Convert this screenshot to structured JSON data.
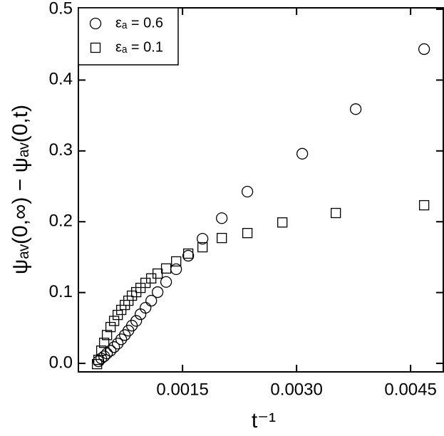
{
  "chart_data": {
    "type": "scatter",
    "xlabel": "t⁻¹",
    "ylabel": "ψₐᵥ(0,∞) − ψₐᵥ(0,t)",
    "xlim": [
      0.00013,
      0.00493
    ],
    "ylim": [
      -0.012,
      0.502
    ],
    "xticks": [
      0.0015,
      {
        "value": 0.003,
        "label": "0.0030"
      },
      0.0045
    ],
    "yticks": [
      {
        "value": 0,
        "label": "0.0"
      },
      0.1,
      0.2,
      0.3,
      0.4,
      0.5
    ],
    "legend": "upper-left",
    "series": [
      {
        "name": "εₐ = 0.6",
        "color": "#000000",
        "marker": "circle",
        "x": [
          0.004678,
          0.003778,
          0.003075,
          0.002353,
          0.002016,
          0.001763,
          0.001575,
          0.001416,
          0.001284,
          0.001172,
          0.001088,
          0.001013,
          0.000947,
          0.000891,
          0.000834,
          0.000788,
          0.000741,
          0.000694,
          0.000647,
          0.0006,
          0.000553,
          0.000506,
          0.000469,
          0.000431,
          0.000394
        ],
        "values": [
          0.4437,
          0.359,
          0.296,
          0.2425,
          0.205,
          0.176,
          0.152,
          0.133,
          0.115,
          0.1006,
          0.0885,
          0.0785,
          0.0694,
          0.06,
          0.0533,
          0.0463,
          0.04,
          0.034,
          0.028,
          0.023,
          0.018,
          0.014,
          0.01,
          0.007,
          0.003
        ]
      },
      {
        "name": "εₐ = 0.1",
        "color": "#000000",
        "marker": "square",
        "x": [
          0.004678,
          0.003516,
          0.002813,
          0.002353,
          0.002016,
          0.001763,
          0.001575,
          0.001416,
          0.001284,
          0.001172,
          0.001088,
          0.001013,
          0.000947,
          0.000891,
          0.000834,
          0.000788,
          0.000741,
          0.000694,
          0.000647,
          0.0006,
          0.000553,
          0.000506,
          0.000469,
          0.000431,
          0.000394,
          0.000375
        ],
        "values": [
          0.2233,
          0.2123,
          0.199,
          0.184,
          0.177,
          0.164,
          0.155,
          0.144,
          0.134,
          0.1268,
          0.12,
          0.1137,
          0.1066,
          0.1006,
          0.0956,
          0.0885,
          0.0825,
          0.0755,
          0.0684,
          0.06,
          0.0513,
          0.04,
          0.029,
          0.018,
          0.005,
          -0.001
        ]
      }
    ]
  }
}
